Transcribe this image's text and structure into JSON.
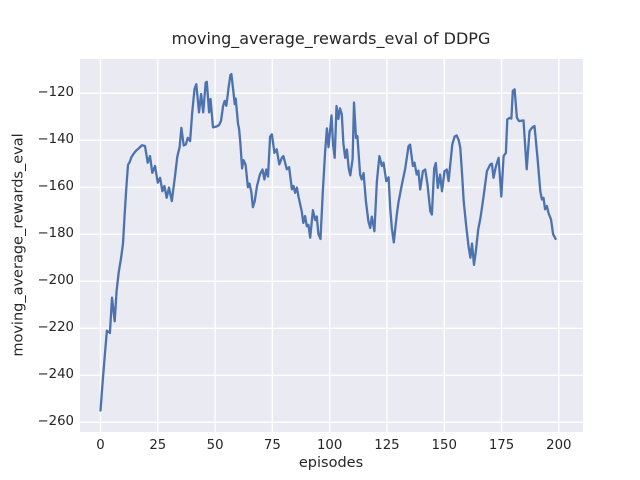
{
  "chart_data": {
    "type": "line",
    "title": "moving_average_rewards_eval of DDPG",
    "xlabel": "episodes",
    "ylabel": "moving_average_rewards_eval",
    "grid": true,
    "legend": "none",
    "x_tick_values": [
      0,
      25,
      50,
      75,
      100,
      125,
      150,
      175,
      200
    ],
    "x_tick_labels": [
      "0",
      "25",
      "50",
      "75",
      "100",
      "125",
      "150",
      "175",
      "200"
    ],
    "y_tick_values": [
      -120,
      -140,
      -160,
      -180,
      -200,
      -220,
      -240,
      -260
    ],
    "y_tick_labels": [
      "−120",
      "−140",
      "−160",
      "−180",
      "−200",
      "−220",
      "−240",
      "−260"
    ],
    "xlim": [
      -8.95,
      210.55
    ],
    "ylim": [
      -264.1,
      -105.5
    ],
    "style": {
      "line_color": "#4C72B0",
      "plot_bg": "#EAEAF2",
      "grid_color": "#FFFFFF",
      "text_color": "#262626",
      "line_width": 2.3,
      "grid_width": 1.4
    },
    "series": [
      {
        "name": "DDPG",
        "points": [
          [
            0,
            -255
          ],
          [
            1,
            -242
          ],
          [
            2,
            -230
          ],
          [
            2.8,
            -221
          ],
          [
            4.1,
            -222
          ],
          [
            5,
            -207
          ],
          [
            6.2,
            -217
          ],
          [
            7,
            -204
          ],
          [
            8,
            -196
          ],
          [
            9,
            -190
          ],
          [
            9.8,
            -184
          ],
          [
            10.5,
            -172
          ],
          [
            11.2,
            -161
          ],
          [
            12,
            -150.5
          ],
          [
            12.7,
            -149.4
          ],
          [
            13.5,
            -147.2
          ],
          [
            14.3,
            -146
          ],
          [
            15.5,
            -144.5
          ],
          [
            16.5,
            -143.7
          ],
          [
            18,
            -142.2
          ],
          [
            19.4,
            -142.5
          ],
          [
            20.6,
            -149.6
          ],
          [
            21.6,
            -146.8
          ],
          [
            22.6,
            -153.9
          ],
          [
            23.8,
            -151
          ],
          [
            25,
            -158.1
          ],
          [
            26,
            -156
          ],
          [
            27,
            -161.7
          ],
          [
            27.9,
            -159.5
          ],
          [
            28.9,
            -164.5
          ],
          [
            29.9,
            -160.2
          ],
          [
            31.1,
            -165.9
          ],
          [
            32.5,
            -155.3
          ],
          [
            33.5,
            -147
          ],
          [
            34.5,
            -143
          ],
          [
            35.3,
            -134.8
          ],
          [
            36.3,
            -142.3
          ],
          [
            37.2,
            -141.8
          ],
          [
            38.1,
            -139
          ],
          [
            39.1,
            -140.4
          ],
          [
            40,
            -128.3
          ],
          [
            41,
            -118.3
          ],
          [
            41.8,
            -116.2
          ],
          [
            43,
            -128.2
          ],
          [
            43.9,
            -120.4
          ],
          [
            44.8,
            -128.2
          ],
          [
            45.9,
            -115.5
          ],
          [
            46.4,
            -115.2
          ],
          [
            47.4,
            -128.2
          ],
          [
            48,
            -122.5
          ],
          [
            49.1,
            -134.6
          ],
          [
            50.6,
            -134.2
          ],
          [
            51.7,
            -133.6
          ],
          [
            52.6,
            -131.8
          ],
          [
            53.5,
            -125.4
          ],
          [
            54.2,
            -123.3
          ],
          [
            54.9,
            -125.4
          ],
          [
            56,
            -117
          ],
          [
            56.7,
            -112.3
          ],
          [
            57.1,
            -111.9
          ],
          [
            58.6,
            -124.7
          ],
          [
            59,
            -122.3
          ],
          [
            60,
            -133
          ],
          [
            60.5,
            -135.3
          ],
          [
            61,
            -141
          ],
          [
            61.8,
            -152
          ],
          [
            62.4,
            -148.5
          ],
          [
            63.3,
            -150.5
          ],
          [
            64.3,
            -160
          ],
          [
            65,
            -158.5
          ],
          [
            65.8,
            -162
          ],
          [
            66.5,
            -168.5
          ],
          [
            67.3,
            -166
          ],
          [
            68.3,
            -159.5
          ],
          [
            69.6,
            -154.5
          ],
          [
            70.7,
            -152.5
          ],
          [
            71.5,
            -156.7
          ],
          [
            72.3,
            -152.5
          ],
          [
            73.1,
            -155.5
          ],
          [
            74,
            -138.5
          ],
          [
            74.8,
            -137.5
          ],
          [
            75.9,
            -145.4
          ],
          [
            76.9,
            -143.9
          ],
          [
            78,
            -150.3
          ],
          [
            79.1,
            -147.5
          ],
          [
            79.8,
            -146.8
          ],
          [
            81.3,
            -152.4
          ],
          [
            82.3,
            -151.5
          ],
          [
            83.5,
            -160.9
          ],
          [
            84.2,
            -159.5
          ],
          [
            84.9,
            -162.4
          ],
          [
            85.7,
            -160.2
          ],
          [
            86.4,
            -164
          ],
          [
            87.8,
            -170.2
          ],
          [
            88.5,
            -175.2
          ],
          [
            89.3,
            -172.3
          ],
          [
            90,
            -176.6
          ],
          [
            90.7,
            -176
          ],
          [
            91.5,
            -181.5
          ],
          [
            92.7,
            -169.8
          ],
          [
            93.7,
            -174
          ],
          [
            94.4,
            -172.5
          ],
          [
            95.1,
            -179.9
          ],
          [
            96,
            -182
          ],
          [
            97,
            -162
          ],
          [
            98,
            -145
          ],
          [
            98.8,
            -135
          ],
          [
            99.5,
            -143
          ],
          [
            100.8,
            -129.5
          ],
          [
            101.5,
            -142
          ],
          [
            102.2,
            -147.5
          ],
          [
            103,
            -125.5
          ],
          [
            103.8,
            -131
          ],
          [
            104.5,
            -126.5
          ],
          [
            105.3,
            -129
          ],
          [
            106,
            -141.5
          ],
          [
            106.8,
            -147.5
          ],
          [
            107.5,
            -144
          ],
          [
            108.3,
            -152
          ],
          [
            109,
            -155
          ],
          [
            110,
            -148
          ],
          [
            110.6,
            -124
          ],
          [
            111.5,
            -139
          ],
          [
            112.1,
            -138.3
          ],
          [
            113.3,
            -154.6
          ],
          [
            114,
            -156.7
          ],
          [
            114.8,
            -154
          ],
          [
            115.8,
            -166
          ],
          [
            116.9,
            -174.5
          ],
          [
            117.7,
            -177.3
          ],
          [
            118.4,
            -172.5
          ],
          [
            119.5,
            -178.7
          ],
          [
            120.6,
            -157.4
          ],
          [
            121.7,
            -146.8
          ],
          [
            122.8,
            -151
          ],
          [
            123.5,
            -149.6
          ],
          [
            124.7,
            -157.4
          ],
          [
            125.7,
            -155.8
          ],
          [
            126.4,
            -168.8
          ],
          [
            127.1,
            -177.3
          ],
          [
            128,
            -183.5
          ],
          [
            129.3,
            -171.6
          ],
          [
            130,
            -166.6
          ],
          [
            131.5,
            -158.8
          ],
          [
            132.9,
            -152.4
          ],
          [
            134.4,
            -142.6
          ],
          [
            135.1,
            -141.9
          ],
          [
            136.3,
            -151
          ],
          [
            137,
            -149.6
          ],
          [
            138,
            -154.6
          ],
          [
            138.7,
            -153
          ],
          [
            139.5,
            -161
          ],
          [
            140.7,
            -153.2
          ],
          [
            141.7,
            -152.5
          ],
          [
            142.7,
            -158.9
          ],
          [
            143.9,
            -170.2
          ],
          [
            144.6,
            -171.6
          ],
          [
            145.6,
            -152
          ],
          [
            146.3,
            -149.7
          ],
          [
            147.2,
            -160.3
          ],
          [
            148.2,
            -154.6
          ],
          [
            149,
            -161.7
          ],
          [
            150.1,
            -153.2
          ],
          [
            151.1,
            -152.5
          ],
          [
            151.9,
            -157.4
          ],
          [
            152.8,
            -148.5
          ],
          [
            153.5,
            -141.8
          ],
          [
            154.5,
            -138.5
          ],
          [
            155.4,
            -138
          ],
          [
            156.3,
            -140
          ],
          [
            157,
            -143.3
          ],
          [
            157.8,
            -154.6
          ],
          [
            158.5,
            -166
          ],
          [
            159.6,
            -176.5
          ],
          [
            160.6,
            -185
          ],
          [
            161.4,
            -190
          ],
          [
            162.1,
            -184
          ],
          [
            163,
            -193
          ],
          [
            163.8,
            -187
          ],
          [
            164.8,
            -178
          ],
          [
            165.8,
            -173
          ],
          [
            167.2,
            -163.5
          ],
          [
            168.6,
            -153.2
          ],
          [
            170.1,
            -150.3
          ],
          [
            170.8,
            -150
          ],
          [
            171.5,
            -156
          ],
          [
            172.6,
            -151
          ],
          [
            173.7,
            -147.5
          ],
          [
            174.9,
            -164
          ],
          [
            175.9,
            -146.8
          ],
          [
            176.9,
            -145.4
          ],
          [
            177.5,
            -131.2
          ],
          [
            178.5,
            -130.5
          ],
          [
            179.3,
            -130.8
          ],
          [
            179.9,
            -119.1
          ],
          [
            180.7,
            -118.4
          ],
          [
            181.7,
            -130.5
          ],
          [
            182.6,
            -131.9
          ],
          [
            184.6,
            -131.6
          ],
          [
            186,
            -152.4
          ],
          [
            187.2,
            -136.2
          ],
          [
            188.2,
            -134.8
          ],
          [
            189.4,
            -134
          ],
          [
            190.7,
            -147.5
          ],
          [
            191.9,
            -161.7
          ],
          [
            192.6,
            -165.2
          ],
          [
            193.3,
            -164.5
          ],
          [
            194,
            -169.4
          ],
          [
            194.8,
            -168
          ],
          [
            195.5,
            -171
          ],
          [
            196.6,
            -173.7
          ],
          [
            197.5,
            -180
          ],
          [
            198.6,
            -182
          ]
        ]
      }
    ]
  }
}
